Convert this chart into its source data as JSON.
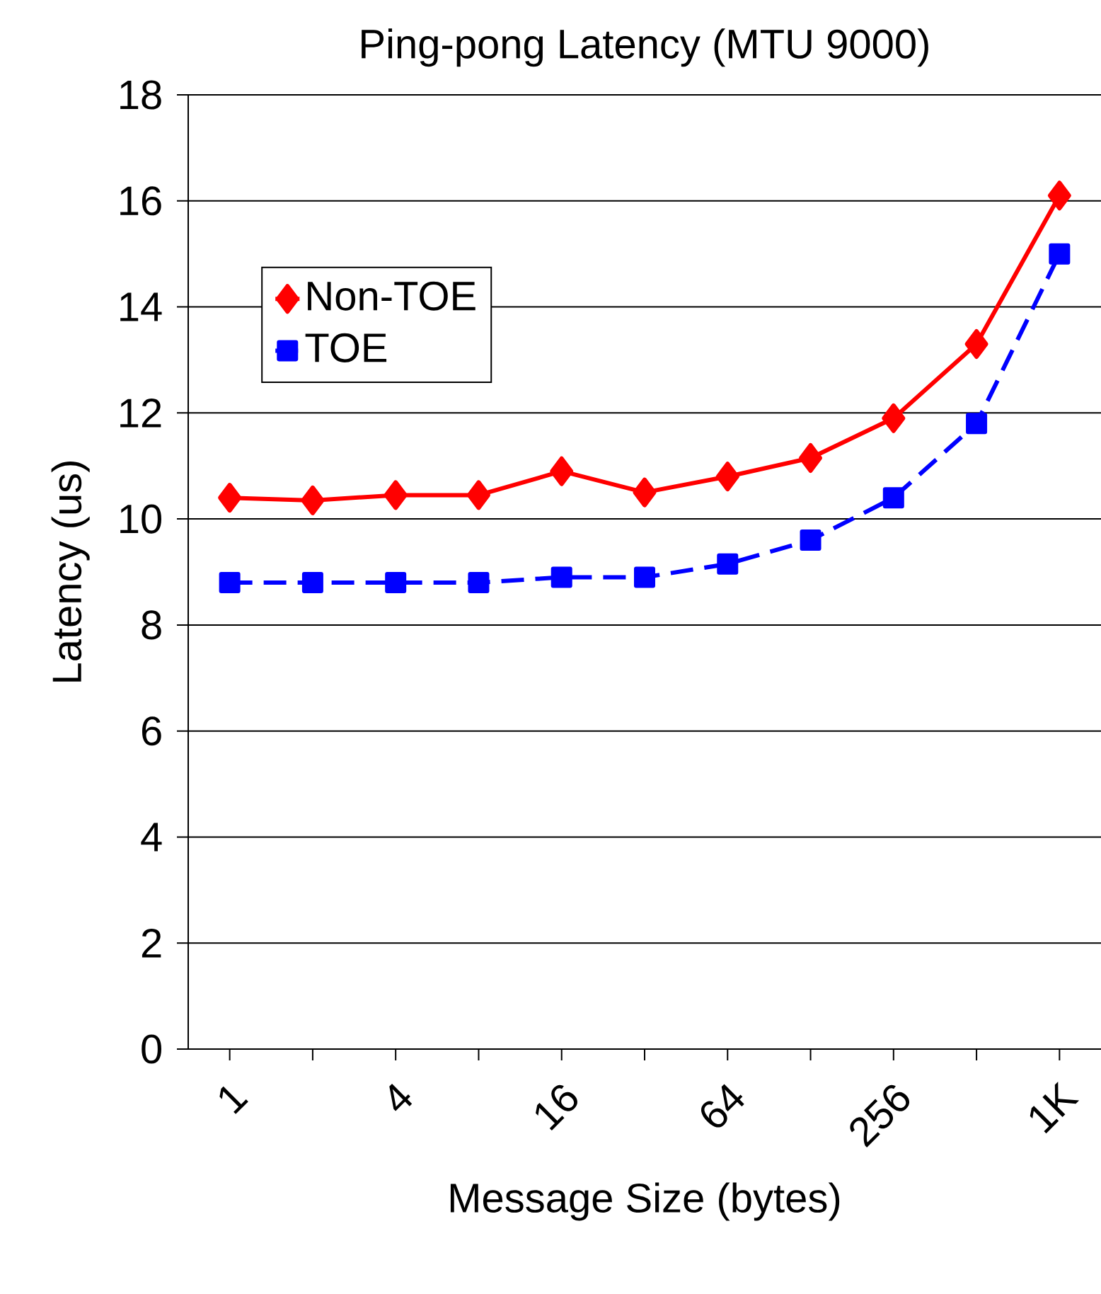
{
  "chart_data": {
    "type": "line",
    "title": "Ping-pong Latency (MTU 9000)",
    "xlabel": "Message Size (bytes)",
    "ylabel": "Latency (us)",
    "categories": [
      "1",
      null,
      "4",
      null,
      "16",
      null,
      "64",
      null,
      "256",
      null,
      "1K"
    ],
    "series": [
      {
        "name": "Non-TOE",
        "color": "#ff0000",
        "marker": "diamond",
        "line_style": "solid",
        "values": [
          10.4,
          10.35,
          10.45,
          10.45,
          10.9,
          10.5,
          10.8,
          11.15,
          11.9,
          13.3,
          16.1
        ]
      },
      {
        "name": "TOE",
        "color": "#0000ff",
        "marker": "square",
        "line_style": "dashed",
        "values": [
          8.8,
          8.8,
          8.8,
          8.8,
          8.9,
          8.9,
          9.15,
          9.6,
          10.4,
          11.8,
          15.0
        ]
      }
    ],
    "ylim": [
      0,
      18
    ],
    "yticks": [
      0,
      2,
      4,
      6,
      8,
      10,
      12,
      14,
      16,
      18
    ],
    "grid": "y",
    "legend": "top left"
  }
}
